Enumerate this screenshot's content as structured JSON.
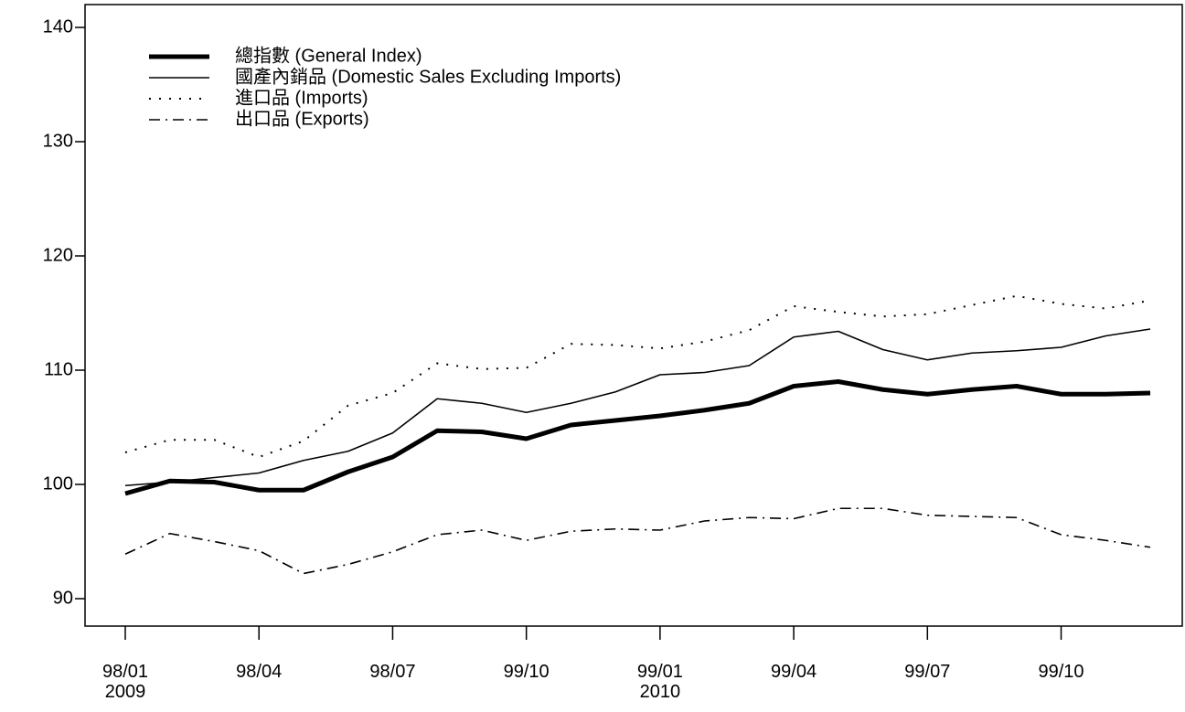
{
  "chart_data": {
    "type": "line",
    "categories": [
      "98/01\n2009",
      null,
      null,
      "98/04",
      null,
      null,
      "98/07",
      null,
      null,
      "99/10",
      null,
      null,
      "99/01\n2010",
      null,
      null,
      "99/04",
      null,
      null,
      "99/07",
      null,
      null,
      "99/10",
      null,
      null
    ],
    "series": [
      {
        "name": "總指數 (General Index)",
        "color": "#000000",
        "width": 5,
        "dash": "none",
        "values": [
          99.2,
          100.3,
          100.2,
          99.5,
          99.5,
          101.1,
          102.4,
          104.7,
          104.6,
          104.0,
          105.2,
          105.6,
          106.0,
          106.5,
          107.1,
          108.6,
          109.0,
          108.3,
          107.9,
          108.3,
          108.6,
          107.9,
          107.9,
          108.0
        ]
      },
      {
        "name": "國產內銷品 (Domestic Sales Excluding Imports)",
        "color": "#000000",
        "width": 1.6,
        "dash": "none",
        "values": [
          99.9,
          100.2,
          100.6,
          101.0,
          102.1,
          102.9,
          104.5,
          107.5,
          107.1,
          106.3,
          107.1,
          108.1,
          109.6,
          109.8,
          110.4,
          112.9,
          113.4,
          111.8,
          110.9,
          111.5,
          111.7,
          112.0,
          113.0,
          113.6
        ]
      },
      {
        "name": "進口品 (Imports)",
        "color": "#000000",
        "width": 2,
        "dash": "2 9",
        "values": [
          102.8,
          103.9,
          103.9,
          102.4,
          103.8,
          106.9,
          108.0,
          110.6,
          110.1,
          110.2,
          112.3,
          112.2,
          111.9,
          112.5,
          113.5,
          115.6,
          115.1,
          114.7,
          114.9,
          115.7,
          116.5,
          115.8,
          115.4,
          116.1
        ]
      },
      {
        "name": "出口品 (Exports)",
        "color": "#000000",
        "width": 1.6,
        "dash": "12 6 2 6",
        "values": [
          93.9,
          95.7,
          95.0,
          94.2,
          92.2,
          93.0,
          94.1,
          95.6,
          96.0,
          95.1,
          95.9,
          96.1,
          96.0,
          96.8,
          97.1,
          97.0,
          97.9,
          97.9,
          97.3,
          97.2,
          97.1,
          95.6,
          95.1,
          94.5
        ]
      }
    ],
    "ylim": [
      87.6,
      142
    ],
    "yticks": [
      90,
      100,
      110,
      120,
      130,
      140
    ],
    "legend": "upper-left",
    "grid": false
  }
}
